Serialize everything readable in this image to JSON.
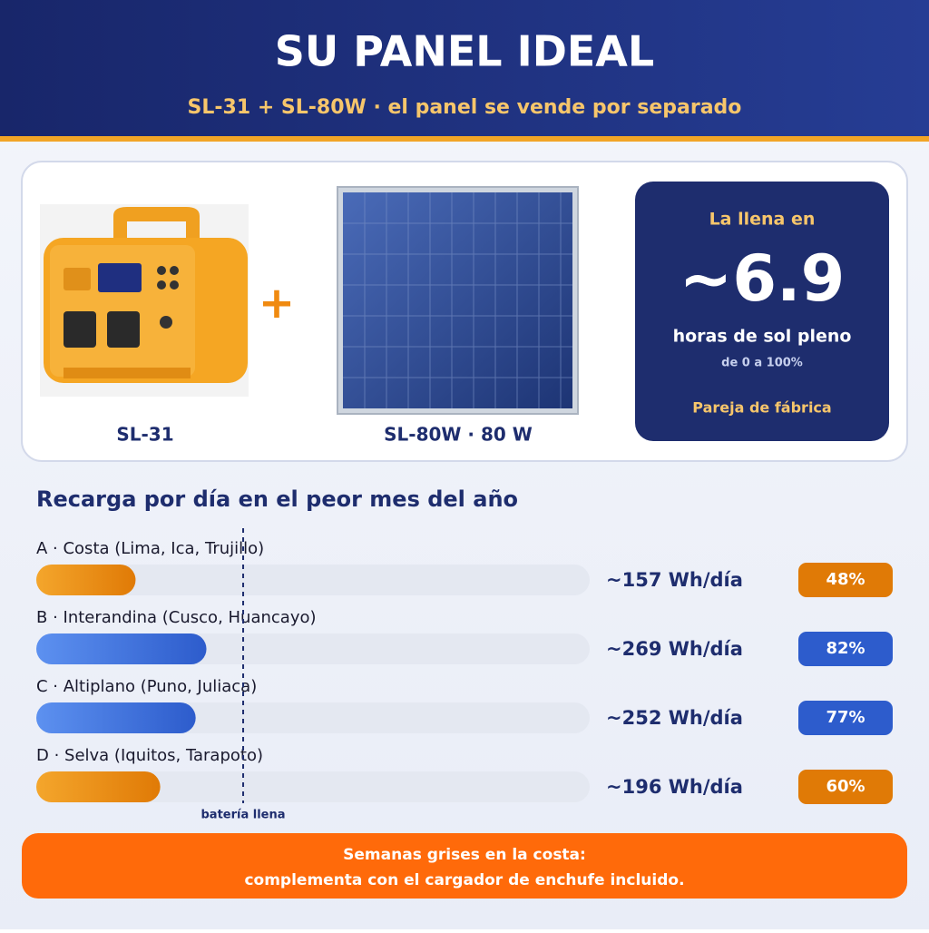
{
  "header": {
    "title": "SU PANEL IDEAL",
    "subtitle": "SL-31 + SL-80W · el panel se vende por separado"
  },
  "products": [
    {
      "label": "SL-31"
    },
    {
      "label": "SL-80W · 80 W"
    }
  ],
  "card": {
    "intro": "La llena en",
    "value": "~6.9",
    "unit": "horas de sol pleno",
    "range": "de 0 a 100%",
    "note": "Pareja de fábrica"
  },
  "chart_data": {
    "type": "bar",
    "title": "Recarga por día en el peor mes del año",
    "categories": [
      "A · Costa (Lima, Ica, Trujillo)",
      "B · Interandina (Cusco, Huancayo)",
      "C · Altiplano (Puno, Juliaca)",
      "D · Selva (Iquitos, Tarapoto)"
    ],
    "values": [
      157,
      269,
      252,
      196
    ],
    "value_labels": [
      "~157 Wh/día",
      "~269 Wh/día",
      "~252 Wh/día",
      "~196 Wh/día"
    ],
    "shares": [
      48,
      82,
      77,
      60
    ],
    "share_labels": [
      "48%",
      "82%",
      "77%",
      "60%"
    ],
    "colors": [
      [
        "#f4a62c",
        "#e07a06"
      ],
      [
        "#5d91f0",
        "#2d5ccc"
      ],
      [
        "#5d91f0",
        "#2d5ccc"
      ],
      [
        "#f4a62c",
        "#e07a06"
      ]
    ],
    "xlim": [
      0,
      875
    ],
    "marker_label": "batería llena"
  },
  "footer": {
    "line1": "Semanas grises en la costa:",
    "line2": "complementa con el cargador de enchufe incluido."
  }
}
